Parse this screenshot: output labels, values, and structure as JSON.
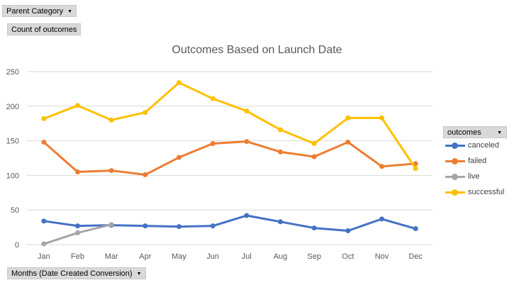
{
  "pivot": {
    "filter_label": "Parent Category",
    "values_label": "Count of outcomes",
    "axis_field_label": "Months (Date Created Conversion)",
    "legend_field_label": "outcomes"
  },
  "chart_data": {
    "type": "line",
    "title": "Outcomes Based on Launch Date",
    "categories": [
      "Jan",
      "Feb",
      "Mar",
      "Apr",
      "May",
      "Jun",
      "Jul",
      "Aug",
      "Sep",
      "Oct",
      "Nov",
      "Dec"
    ],
    "ylim": [
      0,
      250
    ],
    "yticks": [
      0,
      50,
      100,
      150,
      200,
      250
    ],
    "grid": true,
    "legend_position": "right",
    "series": [
      {
        "name": "canceled",
        "color": "#4472c4",
        "values": [
          34,
          27,
          28,
          27,
          26,
          27,
          42,
          33,
          24,
          20,
          37,
          23
        ]
      },
      {
        "name": "failed",
        "color": "#ed7d31",
        "values": [
          148,
          105,
          107,
          101,
          126,
          146,
          149,
          134,
          127,
          148,
          113,
          117
        ]
      },
      {
        "name": "live",
        "color": "#a5a5a5",
        "values": [
          1,
          17,
          29,
          null,
          null,
          null,
          null,
          null,
          null,
          null,
          null,
          null
        ]
      },
      {
        "name": "successful",
        "color": "#ffc000",
        "values": [
          182,
          201,
          180,
          191,
          234,
          211,
          193,
          166,
          146,
          183,
          183,
          110
        ]
      }
    ]
  }
}
